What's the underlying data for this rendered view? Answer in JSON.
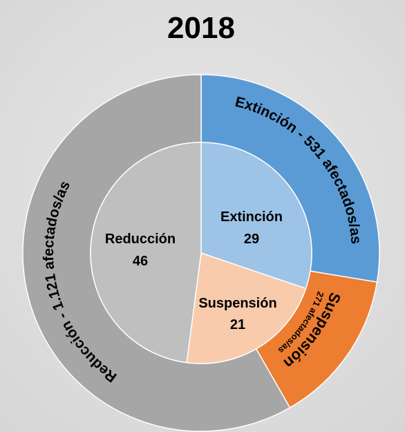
{
  "chart_data": {
    "type": "pie",
    "title": "2018",
    "inner_ring": {
      "slices": [
        {
          "label": "Extinción",
          "value": 29,
          "color": "#9dc3e6"
        },
        {
          "label": "Suspensión",
          "value": 21,
          "color": "#f8cbad"
        },
        {
          "label": "Reducción",
          "value": 46,
          "color": "#bfbfbf"
        }
      ]
    },
    "outer_ring": {
      "slices": [
        {
          "label": "Extinción - 531 afectados/as",
          "category": "Extinción",
          "value": 531,
          "color": "#5b9bd5"
        },
        {
          "label_main": "Suspensión",
          "label_sub": "271 afectados/as",
          "category": "Suspensión",
          "value": 271,
          "color": "#ed7d31"
        },
        {
          "label": "Reducción - 1.121 afectados/as",
          "category": "Reducción",
          "value": 1121,
          "color": "#a6a6a6"
        }
      ]
    }
  }
}
